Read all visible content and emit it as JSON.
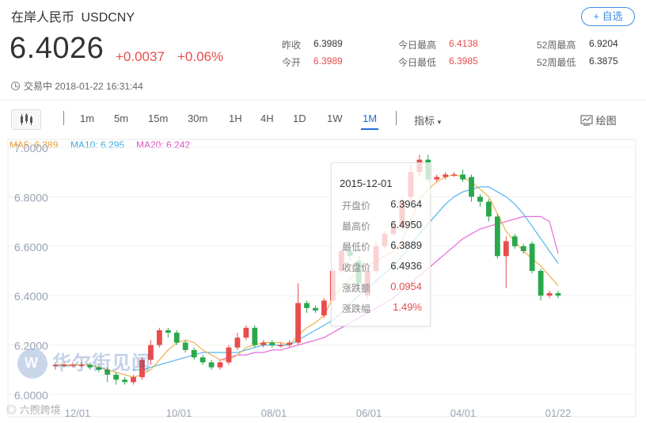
{
  "header": {
    "name": "在岸人民币",
    "symbol": "USDCNY",
    "add_label": "+ 自选",
    "price": "6.4026",
    "change": "+0.0037",
    "change_pct": "+0.06%",
    "status": "交易中 2018-01-22 16:31:44"
  },
  "stats": [
    {
      "label": "昨收",
      "value": "6.3989",
      "red": false
    },
    {
      "label": "今开",
      "value": "6.3989",
      "red": true
    },
    {
      "label": "今日最高",
      "value": "6.4138",
      "red": true
    },
    {
      "label": "今日最低",
      "value": "6.3985",
      "red": true
    },
    {
      "label": "52周最高",
      "value": "6.9204",
      "red": false
    },
    {
      "label": "52周最低",
      "value": "6.3875",
      "red": false
    }
  ],
  "toolbar": {
    "periods": [
      "1m",
      "5m",
      "15m",
      "30m",
      "1H",
      "4H",
      "1D",
      "1W",
      "1M"
    ],
    "active": "1M",
    "indicator_label": "指标",
    "draw_label": "绘图"
  },
  "ma_legend": [
    {
      "label": "MA5: 6.389",
      "color": "#f0a030"
    },
    {
      "label": "MA10: 6.295",
      "color": "#3aaee0"
    },
    {
      "label": "MA20: 6.242",
      "color": "#e050c8"
    }
  ],
  "tooltip": {
    "date": "2015-12-01",
    "rows": [
      {
        "label": "开盘价",
        "value": "6.3964",
        "red": false
      },
      {
        "label": "最高价",
        "value": "6.4950",
        "red": false
      },
      {
        "label": "最低价",
        "value": "6.3889",
        "red": false
      },
      {
        "label": "收盘价",
        "value": "6.4936",
        "red": false
      },
      {
        "label": "涨跌额",
        "value": "0.0954",
        "red": true
      },
      {
        "label": "涨跌幅",
        "value": "1.49%",
        "red": true
      }
    ]
  },
  "watermark": {
    "logo": "W",
    "text": "华尔街见闻",
    "source": "六煦跨境"
  },
  "chart_data": {
    "type": "candlestick",
    "y_ticks": [
      "7.0000",
      "6.8000",
      "6.6000",
      "6.4000",
      "6.2000",
      "6.0000"
    ],
    "ylim": [
      6.0,
      7.0
    ],
    "x_ticks": [
      "12/01",
      "10/01",
      "08/01",
      "06/01",
      "04/01",
      "01/22"
    ],
    "colors": {
      "up": "#e84c4c",
      "down": "#2aa84a"
    },
    "candles": [
      [
        6.12,
        6.12,
        6.1,
        6.13
      ],
      [
        6.12,
        6.12,
        6.11,
        6.13
      ],
      [
        6.12,
        6.12,
        6.11,
        6.13
      ],
      [
        6.12,
        6.12,
        6.11,
        6.13
      ],
      [
        6.12,
        6.11,
        6.1,
        6.13
      ],
      [
        6.11,
        6.1,
        6.09,
        6.12
      ],
      [
        6.1,
        6.08,
        6.05,
        6.11
      ],
      [
        6.08,
        6.06,
        6.04,
        6.09
      ],
      [
        6.06,
        6.05,
        6.04,
        6.07
      ],
      [
        6.05,
        6.07,
        6.04,
        6.08
      ],
      [
        6.07,
        6.14,
        6.06,
        6.15
      ],
      [
        6.14,
        6.2,
        6.12,
        6.22
      ],
      [
        6.2,
        6.26,
        6.19,
        6.27
      ],
      [
        6.26,
        6.25,
        6.23,
        6.27
      ],
      [
        6.25,
        6.21,
        6.2,
        6.26
      ],
      [
        6.21,
        6.18,
        6.17,
        6.22
      ],
      [
        6.18,
        6.15,
        6.14,
        6.19
      ],
      [
        6.15,
        6.13,
        6.12,
        6.16
      ],
      [
        6.13,
        6.11,
        6.1,
        6.14
      ],
      [
        6.11,
        6.13,
        6.1,
        6.14
      ],
      [
        6.13,
        6.19,
        6.12,
        6.2
      ],
      [
        6.19,
        6.23,
        6.18,
        6.25
      ],
      [
        6.23,
        6.27,
        6.22,
        6.28
      ],
      [
        6.27,
        6.2,
        6.19,
        6.28
      ],
      [
        6.2,
        6.21,
        6.19,
        6.22
      ],
      [
        6.21,
        6.2,
        6.19,
        6.22
      ],
      [
        6.2,
        6.2,
        6.19,
        6.21
      ],
      [
        6.2,
        6.21,
        6.19,
        6.22
      ],
      [
        6.21,
        6.37,
        6.2,
        6.45
      ],
      [
        6.37,
        6.35,
        6.33,
        6.38
      ],
      [
        6.35,
        6.34,
        6.33,
        6.36
      ],
      [
        6.32,
        6.38,
        6.31,
        6.39
      ],
      [
        6.38,
        6.5,
        6.37,
        6.51
      ],
      [
        6.5,
        6.58,
        6.49,
        6.59
      ],
      [
        6.58,
        6.56,
        6.54,
        6.6
      ],
      [
        6.54,
        6.45,
        6.43,
        6.56
      ],
      [
        6.4,
        6.5,
        6.39,
        6.51
      ],
      [
        6.5,
        6.6,
        6.49,
        6.62
      ],
      [
        6.6,
        6.65,
        6.59,
        6.66
      ],
      [
        6.65,
        6.68,
        6.64,
        6.7
      ],
      [
        6.68,
        6.78,
        6.67,
        6.8
      ],
      [
        6.8,
        6.9,
        6.78,
        6.93
      ],
      [
        6.9,
        6.95,
        6.88,
        6.97
      ],
      [
        6.95,
        6.87,
        6.86,
        6.97
      ],
      [
        6.87,
        6.88,
        6.86,
        6.89
      ],
      [
        6.88,
        6.89,
        6.87,
        6.9
      ],
      [
        6.89,
        6.89,
        6.88,
        6.9
      ],
      [
        6.89,
        6.87,
        6.86,
        6.91
      ],
      [
        6.88,
        6.8,
        6.78,
        6.89
      ],
      [
        6.8,
        6.78,
        6.76,
        6.81
      ],
      [
        6.78,
        6.72,
        6.7,
        6.79
      ],
      [
        6.72,
        6.56,
        6.55,
        6.73
      ],
      [
        6.56,
        6.62,
        6.43,
        6.64
      ],
      [
        6.64,
        6.6,
        6.59,
        6.65
      ],
      [
        6.6,
        6.58,
        6.57,
        6.61
      ],
      [
        6.61,
        6.5,
        6.49,
        6.62
      ],
      [
        6.5,
        6.4,
        6.38,
        6.51
      ],
      [
        6.4,
        6.41,
        6.39,
        6.42
      ],
      [
        6.41,
        6.4,
        6.39,
        6.42
      ]
    ],
    "ma5": [
      6.12,
      6.12,
      6.12,
      6.12,
      6.12,
      6.11,
      6.1,
      6.09,
      6.08,
      6.07,
      6.08,
      6.1,
      6.14,
      6.18,
      6.21,
      6.22,
      6.21,
      6.18,
      6.16,
      6.14,
      6.14,
      6.16,
      6.19,
      6.2,
      6.21,
      6.21,
      6.21,
      6.2,
      6.24,
      6.27,
      6.29,
      6.32,
      6.39,
      6.43,
      6.47,
      6.49,
      6.52,
      6.54,
      6.56,
      6.58,
      6.62,
      6.7,
      6.79,
      6.83,
      6.86,
      6.88,
      6.89,
      6.88,
      6.86,
      6.83,
      6.8,
      6.73,
      6.66,
      6.62,
      6.58,
      6.55,
      6.52,
      6.48,
      6.44
    ],
    "ma10": [
      null,
      null,
      null,
      null,
      null,
      null,
      null,
      null,
      null,
      6.1,
      6.1,
      6.11,
      6.12,
      6.13,
      6.14,
      6.15,
      6.16,
      6.17,
      6.17,
      6.17,
      6.17,
      6.17,
      6.18,
      6.19,
      6.2,
      6.2,
      6.2,
      6.2,
      6.22,
      6.24,
      6.26,
      6.28,
      6.3,
      6.33,
      6.37,
      6.4,
      6.43,
      6.46,
      6.49,
      6.52,
      6.56,
      6.6,
      6.65,
      6.69,
      6.73,
      6.77,
      6.8,
      6.82,
      6.83,
      6.84,
      6.84,
      6.82,
      6.8,
      6.77,
      6.73,
      6.68,
      6.63,
      6.58,
      6.53
    ],
    "ma20": [
      null,
      null,
      null,
      null,
      null,
      null,
      null,
      null,
      null,
      null,
      null,
      null,
      null,
      null,
      null,
      null,
      null,
      null,
      null,
      6.14,
      6.15,
      6.16,
      6.16,
      6.17,
      6.17,
      6.18,
      6.18,
      6.19,
      6.2,
      6.21,
      6.22,
      6.23,
      6.25,
      6.27,
      6.29,
      6.31,
      6.33,
      6.35,
      6.37,
      6.39,
      6.42,
      6.45,
      6.48,
      6.51,
      6.54,
      6.57,
      6.6,
      6.63,
      6.65,
      6.67,
      6.68,
      6.69,
      6.7,
      6.71,
      6.72,
      6.72,
      6.72,
      6.7,
      6.57
    ]
  }
}
